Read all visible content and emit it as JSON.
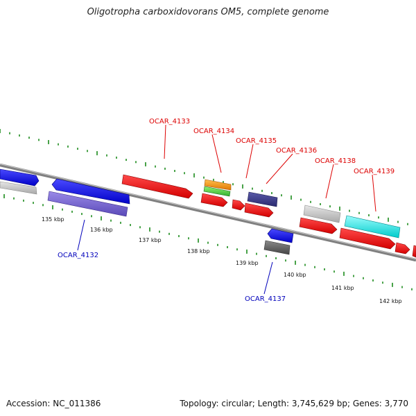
{
  "title": "Oligotropha carboxidovorans OM5, complete genome",
  "footer": {
    "accession": "Accession: NC_011386",
    "stats": "Topology: circular; Length: 3,745,629 bp; Genes: 3,770"
  },
  "colors": {
    "backbone": "#808080",
    "ticks": "#1a8a1a",
    "forward_label": "#dd0000",
    "reverse_label": "#0000bb"
  },
  "kbp_marks": [
    {
      "text": "135 kbp"
    },
    {
      "text": "136 kbp"
    },
    {
      "text": "137 kbp"
    },
    {
      "text": "138 kbp"
    },
    {
      "text": "139 kbp"
    },
    {
      "text": "140 kbp"
    },
    {
      "text": "141 kbp"
    },
    {
      "text": "142 kbp"
    }
  ],
  "gene_labels": [
    {
      "id": "OCAR_4132",
      "strand": "reverse"
    },
    {
      "id": "OCAR_4133",
      "strand": "forward"
    },
    {
      "id": "OCAR_4134",
      "strand": "forward"
    },
    {
      "id": "OCAR_4135",
      "strand": "forward"
    },
    {
      "id": "OCAR_4136",
      "strand": "forward"
    },
    {
      "id": "OCAR_4137",
      "strand": "reverse"
    },
    {
      "id": "OCAR_4138",
      "strand": "forward"
    },
    {
      "id": "OCAR_4139",
      "strand": "forward"
    }
  ]
}
